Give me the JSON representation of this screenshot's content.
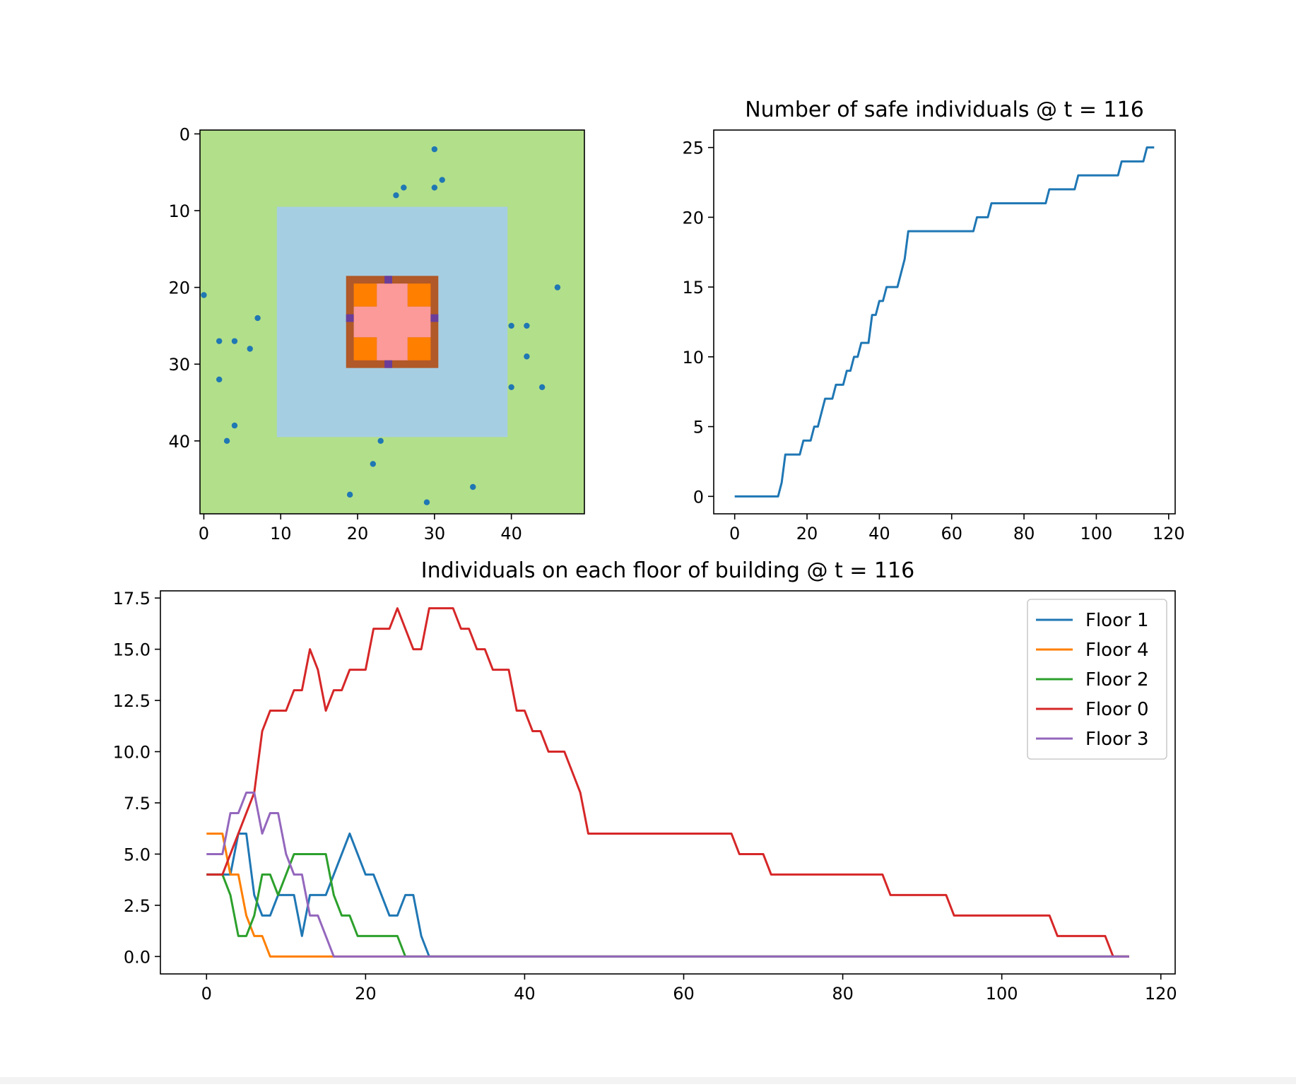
{
  "chart_data": [
    {
      "type": "heatmap",
      "title": "",
      "xlabel": "",
      "ylabel": "",
      "grid_size": [
        50,
        50
      ],
      "xlim": [
        -0.5,
        49.5
      ],
      "ylim": [
        49.5,
        -0.5
      ],
      "xticks": [
        0,
        10,
        20,
        30,
        40
      ],
      "yticks": [
        0,
        10,
        20,
        30,
        40
      ],
      "grid": false,
      "regions": [
        {
          "name": "outer-area",
          "color": "#b2df8a",
          "x": [
            0,
            49
          ],
          "y": [
            0,
            49
          ]
        },
        {
          "name": "surrounding-zone",
          "color": "#a6cee3",
          "x": [
            10,
            39
          ],
          "y": [
            10,
            39
          ]
        },
        {
          "name": "building-wall",
          "color": "#b15928",
          "x": [
            19,
            30
          ],
          "y": [
            19,
            30
          ]
        },
        {
          "name": "building-corner",
          "color": "#ff7f00",
          "x": [
            20,
            22
          ],
          "y": [
            20,
            22
          ]
        },
        {
          "name": "building-corner",
          "color": "#ff7f00",
          "x": [
            27,
            29
          ],
          "y": [
            20,
            22
          ]
        },
        {
          "name": "building-corner",
          "color": "#ff7f00",
          "x": [
            20,
            22
          ],
          "y": [
            27,
            29
          ]
        },
        {
          "name": "building-corner",
          "color": "#ff7f00",
          "x": [
            27,
            29
          ],
          "y": [
            27,
            29
          ]
        },
        {
          "name": "building-interior",
          "color": "#fb9a99",
          "x": [
            23,
            26
          ],
          "y": [
            20,
            29
          ]
        },
        {
          "name": "building-interior",
          "color": "#fb9a99",
          "x": [
            20,
            29
          ],
          "y": [
            23,
            26
          ]
        },
        {
          "name": "exit",
          "color": "#6a3d9a",
          "x": [
            24,
            24
          ],
          "y": [
            19,
            19
          ]
        },
        {
          "name": "exit",
          "color": "#6a3d9a",
          "x": [
            24,
            24
          ],
          "y": [
            30,
            30
          ]
        },
        {
          "name": "exit",
          "color": "#6a3d9a",
          "x": [
            19,
            19
          ],
          "y": [
            24,
            24
          ]
        },
        {
          "name": "exit",
          "color": "#6a3d9a",
          "x": [
            30,
            30
          ],
          "y": [
            24,
            24
          ]
        }
      ],
      "individuals": {
        "color": "#1f77b4",
        "x": [
          30,
          31,
          25,
          26,
          30,
          0,
          46,
          7,
          2,
          4,
          6,
          40,
          42,
          42,
          2,
          40,
          44,
          4,
          3,
          23,
          22,
          19,
          29,
          35
        ],
        "y": [
          2,
          6,
          8,
          7,
          7,
          21,
          20,
          24,
          27,
          27,
          28,
          25,
          25,
          29,
          32,
          33,
          33,
          38,
          40,
          40,
          43,
          47,
          48,
          46
        ]
      }
    },
    {
      "type": "line",
      "title": "Number of safe individuals @ t = 116",
      "xlabel": "",
      "ylabel": "",
      "xlim": [
        -5.8,
        121.8
      ],
      "ylim": [
        -1.25,
        26.25
      ],
      "xticks": [
        0,
        20,
        40,
        60,
        80,
        100,
        120
      ],
      "yticks": [
        0,
        5,
        10,
        15,
        20,
        25
      ],
      "grid": false,
      "series": [
        {
          "color": "#1f77b4",
          "x": [
            0,
            12,
            13,
            14,
            15,
            16,
            17,
            18,
            19,
            20,
            21,
            22,
            23,
            24,
            25,
            26,
            27,
            28,
            29,
            30,
            31,
            32,
            33,
            34,
            35,
            36,
            37,
            38,
            39,
            40,
            41,
            42,
            43,
            44,
            45,
            46,
            47,
            48,
            49,
            50,
            55,
            60,
            65,
            66,
            67,
            68,
            69,
            70,
            71,
            75,
            80,
            85,
            86,
            87,
            90,
            93,
            94,
            95,
            100,
            105,
            106,
            107,
            110,
            113,
            114,
            115,
            116
          ],
          "y": [
            0,
            0,
            1,
            3,
            3,
            3,
            3,
            3,
            4,
            4,
            4,
            5,
            5,
            6,
            7,
            7,
            7,
            8,
            8,
            8,
            9,
            9,
            10,
            10,
            11,
            11,
            11,
            13,
            13,
            14,
            14,
            15,
            15,
            15,
            15,
            16,
            17,
            19,
            19,
            19,
            19,
            19,
            19,
            19,
            20,
            20,
            20,
            20,
            21,
            21,
            21,
            21,
            21,
            22,
            22,
            22,
            22,
            23,
            23,
            23,
            23,
            24,
            24,
            24,
            25,
            25,
            25
          ]
        }
      ]
    },
    {
      "type": "line",
      "title": "Individuals on each floor of building @ t = 116",
      "xlabel": "",
      "ylabel": "",
      "xlim": [
        -5.8,
        121.8
      ],
      "ylim": [
        -0.85,
        17.85
      ],
      "xticks": [
        0,
        20,
        40,
        60,
        80,
        100,
        120
      ],
      "yticks": [
        0.0,
        2.5,
        5.0,
        7.5,
        10.0,
        12.5,
        15.0,
        17.5
      ],
      "ytick_labels": [
        "0.0",
        "2.5",
        "5.0",
        "7.5",
        "10.0",
        "12.5",
        "15.0",
        "17.5"
      ],
      "grid": false,
      "legend_position": "top-right",
      "series": [
        {
          "name": "Floor 1",
          "color": "#1f77b4",
          "x": [
            0,
            1,
            2,
            3,
            4,
            5,
            6,
            7,
            8,
            9,
            10,
            11,
            12,
            13,
            14,
            15,
            16,
            17,
            18,
            19,
            20,
            21,
            22,
            23,
            24,
            25,
            26,
            27,
            28,
            116
          ],
          "y": [
            4,
            4,
            4,
            4,
            6,
            6,
            3,
            2,
            2,
            3,
            3,
            3,
            1,
            3,
            3,
            3,
            4,
            5,
            6,
            5,
            4,
            4,
            3,
            2,
            2,
            3,
            3,
            1,
            0,
            0
          ]
        },
        {
          "name": "Floor 4",
          "color": "#ff7f00",
          "x": [
            0,
            1,
            2,
            3,
            4,
            5,
            6,
            7,
            8,
            16,
            116
          ],
          "y": [
            6,
            6,
            6,
            4,
            4,
            2,
            1,
            1,
            0,
            0,
            0
          ]
        },
        {
          "name": "Floor 2",
          "color": "#2ca02c",
          "x": [
            0,
            1,
            2,
            3,
            4,
            5,
            6,
            7,
            8,
            9,
            10,
            11,
            12,
            13,
            14,
            15,
            16,
            17,
            18,
            19,
            20,
            21,
            22,
            23,
            24,
            25,
            116
          ],
          "y": [
            4,
            4,
            4,
            3,
            1,
            1,
            2,
            4,
            4,
            3,
            4,
            5,
            5,
            5,
            5,
            5,
            3,
            2,
            2,
            1,
            1,
            1,
            1,
            1,
            1,
            0,
            0
          ]
        },
        {
          "name": "Floor 0",
          "color": "#d62728",
          "x": [
            0,
            1,
            2,
            3,
            4,
            5,
            6,
            7,
            8,
            9,
            10,
            11,
            12,
            13,
            14,
            15,
            16,
            17,
            18,
            19,
            20,
            21,
            22,
            23,
            24,
            25,
            26,
            27,
            28,
            29,
            30,
            31,
            32,
            33,
            34,
            35,
            36,
            37,
            38,
            39,
            40,
            41,
            42,
            43,
            44,
            45,
            46,
            47,
            48,
            66,
            67,
            70,
            71,
            85,
            86,
            93,
            94,
            106,
            107,
            113,
            114,
            116
          ],
          "y": [
            4,
            4,
            4,
            5,
            6,
            7,
            8,
            11,
            12,
            12,
            12,
            13,
            13,
            15,
            14,
            12,
            13,
            13,
            14,
            14,
            14,
            16,
            16,
            16,
            17,
            16,
            15,
            15,
            17,
            17,
            17,
            17,
            16,
            16,
            15,
            15,
            14,
            14,
            14,
            12,
            12,
            11,
            11,
            10,
            10,
            10,
            9,
            8,
            6,
            6,
            5,
            5,
            4,
            4,
            3,
            3,
            2,
            2,
            1,
            1,
            0,
            0
          ]
        },
        {
          "name": "Floor 3",
          "color": "#9467bd",
          "x": [
            0,
            1,
            2,
            3,
            4,
            5,
            6,
            7,
            8,
            9,
            10,
            11,
            12,
            13,
            14,
            15,
            16,
            116
          ],
          "y": [
            5,
            5,
            5,
            7,
            7,
            8,
            8,
            6,
            7,
            7,
            5,
            4,
            4,
            2,
            2,
            1,
            0,
            0
          ]
        }
      ]
    }
  ]
}
